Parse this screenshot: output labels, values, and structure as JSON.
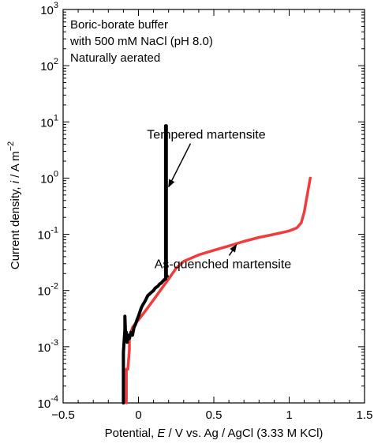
{
  "chart_data": {
    "type": "line",
    "xlabel": {
      "prefix": "Potential, ",
      "var": "E",
      "suffix": " / V vs. Ag / AgCl (3.33 M KCl)"
    },
    "ylabel": {
      "prefix": "Current density, ",
      "var": "i",
      "suffix": " / A m"
    },
    "ylabel_exp": "−2",
    "xlim": [
      -0.5,
      1.5
    ],
    "ylim_log10": [
      -4,
      3
    ],
    "yscale": "log",
    "xticks": [
      {
        "value": -0.5,
        "label": "−0.5"
      },
      {
        "value": 0,
        "label": "0"
      },
      {
        "value": 0.5,
        "label": "0.5"
      },
      {
        "value": 1,
        "label": "1"
      },
      {
        "value": 1.5,
        "label": "1.5"
      }
    ],
    "yticks": [
      {
        "exp": -4,
        "base": "10",
        "sup": "-4"
      },
      {
        "exp": -3,
        "base": "10",
        "sup": "-3"
      },
      {
        "exp": -2,
        "base": "10",
        "sup": "-2"
      },
      {
        "exp": -1,
        "base": "10",
        "sup": "-1"
      },
      {
        "exp": 0,
        "base": "10",
        "sup": "0"
      },
      {
        "exp": 1,
        "base": "10",
        "sup": "1"
      },
      {
        "exp": 2,
        "base": "10",
        "sup": "2"
      },
      {
        "exp": 3,
        "base": "10",
        "sup": "3"
      }
    ],
    "conditions_text": [
      "Boric-borate buffer",
      "with 500 mM NaCl (pH 8.0)",
      "Naturally aerated"
    ],
    "series": [
      {
        "name": "Tempered martensite",
        "color": "#000000",
        "x": [
          -0.1,
          -0.1,
          -0.09,
          -0.09,
          -0.085,
          -0.08,
          -0.075,
          -0.07,
          -0.06,
          -0.05,
          -0.04,
          -0.03,
          -0.02,
          -0.01,
          0.0,
          0.01,
          0.02,
          0.03,
          0.04,
          0.05,
          0.06,
          0.07,
          0.08,
          0.09,
          0.1,
          0.11,
          0.12,
          0.13,
          0.14,
          0.15,
          0.16,
          0.17,
          0.18,
          0.18,
          0.18,
          0.185,
          0.185,
          0.19
        ],
        "y": [
          0.0001,
          0.0008,
          0.002,
          0.0035,
          0.0014,
          0.0018,
          0.0012,
          0.0016,
          0.0014,
          0.0018,
          0.0016,
          0.0022,
          0.0025,
          0.003,
          0.0035,
          0.0042,
          0.005,
          0.0056,
          0.0062,
          0.007,
          0.008,
          0.0085,
          0.009,
          0.0095,
          0.01,
          0.011,
          0.0115,
          0.012,
          0.013,
          0.0135,
          0.0145,
          0.0155,
          0.016,
          0.02,
          8.5,
          8.5,
          0.018,
          0.018
        ]
      },
      {
        "name": "As-quenched martensite",
        "color": "#f03c3c",
        "x": [
          -0.08,
          -0.08,
          -0.07,
          -0.06,
          -0.06,
          -0.05,
          -0.04,
          -0.02,
          0.0,
          0.05,
          0.1,
          0.15,
          0.2,
          0.25,
          0.3,
          0.4,
          0.5,
          0.6,
          0.7,
          0.8,
          0.9,
          1.0,
          1.05,
          1.08,
          1.1,
          1.12,
          1.14
        ],
        "y": [
          0.0001,
          0.0004,
          0.0004,
          0.0009,
          0.0015,
          0.0018,
          0.0022,
          0.0026,
          0.003,
          0.0045,
          0.0068,
          0.0105,
          0.016,
          0.025,
          0.033,
          0.043,
          0.052,
          0.062,
          0.075,
          0.088,
          0.1,
          0.115,
          0.13,
          0.16,
          0.25,
          0.5,
          1.0
        ]
      }
    ],
    "annotations": [
      {
        "text": "Tempered martensite",
        "color": "#000000",
        "text_x": 0.45,
        "text_y": 5.0,
        "arrow_to_x": 0.2,
        "arrow_to_y": 0.7
      },
      {
        "text": "As-quenched martensite",
        "color": "#f03c3c",
        "text_x": 0.56,
        "text_y": 0.025,
        "arrow_to_x": 0.65,
        "arrow_to_y": 0.065
      }
    ]
  }
}
